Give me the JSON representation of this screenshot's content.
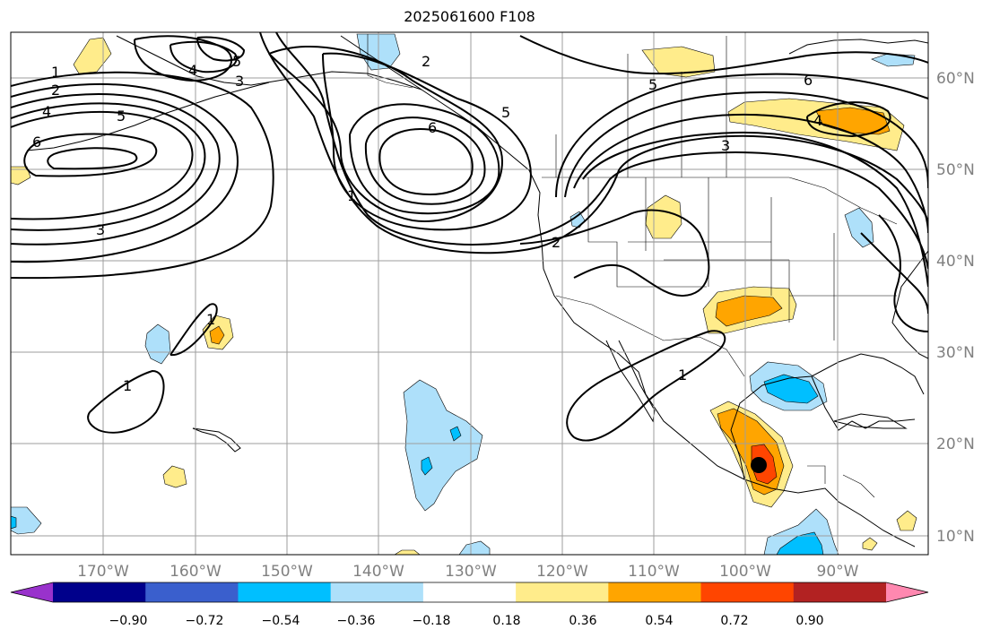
{
  "title": "2025061600 F108",
  "map": {
    "projection": "PlateCarree",
    "lon_range": [
      -180,
      -80
    ],
    "lat_range": [
      8,
      65
    ],
    "lon_labels": [
      "170°W",
      "160°W",
      "150°W",
      "140°W",
      "130°W",
      "120°W",
      "110°W",
      "100°W",
      "90°W"
    ],
    "lat_labels": [
      "60°N",
      "50°N",
      "40°N",
      "30°N",
      "20°N",
      "10°N"
    ],
    "gridlines": true,
    "grid_color": "#9e9e9e",
    "label_color": "#808080"
  },
  "contour_labels": [
    "1",
    "2",
    "3",
    "4",
    "5",
    "6"
  ],
  "colorbar": {
    "tick_labels": [
      "−0.90",
      "−0.72",
      "−0.54",
      "−0.36",
      "−0.18",
      "0.18",
      "0.36",
      "0.54",
      "0.72",
      "0.90"
    ],
    "colors": [
      "#9932cc",
      "#00008b",
      "#3a5fcd",
      "#00bfff",
      "#aee0fa",
      "#ffffff",
      "#ffec8b",
      "#ffa500",
      "#ff4500",
      "#b22222",
      "#ff88b0"
    ],
    "extend": "both"
  },
  "marker": {
    "name": "storm-center",
    "color": "#000000"
  }
}
